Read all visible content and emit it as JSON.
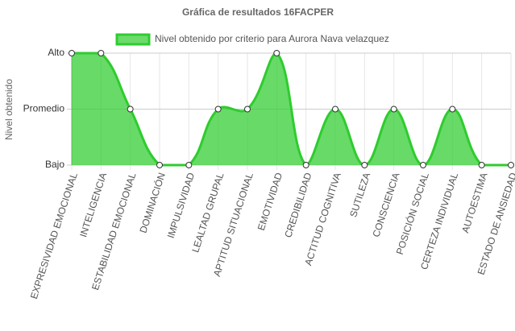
{
  "chart_data": {
    "type": "area",
    "title": "Gráfica de resultados 16FACPER",
    "y_label": "Nivel obtenido",
    "categories": [
      "EXPRESIVIDAD EMOCIONAL",
      "INTELIGENCIA",
      "ESTABILIDAD EMOCIONAL",
      "DOMINACIÓN",
      "IMPULSIVIDAD",
      "LEALTAD GRUPAL",
      "APTITUD SITUACIONAL",
      "EMOTIVIDAD",
      "CREDIBILIDAD",
      "ACTITUD COGNITIVA",
      "SUTILEZA",
      "CONSCIENCIA",
      "POSICIÓN SOCIAL",
      "CERTEZA INDIVIDUAL",
      "AUTOESTIMA",
      "ESTADO DE ANSIEDAD"
    ],
    "series": [
      {
        "name": "Nivel obtenido por criterio para Aurora Nava velazquez",
        "color": "#2ecc2e",
        "values": [
          2,
          2,
          1,
          0,
          0,
          1,
          1,
          2,
          0,
          1,
          0,
          1,
          0,
          1,
          0,
          0
        ]
      }
    ],
    "ylim": [
      0,
      2
    ],
    "yticks": [
      {
        "value": 0,
        "label": "Bajo"
      },
      {
        "value": 1,
        "label": "Promedio"
      },
      {
        "value": 2,
        "label": "Alto"
      }
    ],
    "grid": true,
    "legend": "top"
  }
}
